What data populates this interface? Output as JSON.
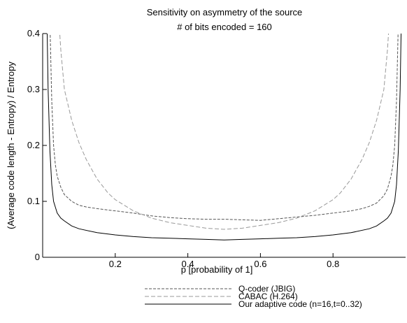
{
  "chart_data": {
    "type": "line",
    "title": "Sensitivity on asymmetry of the source",
    "subtitle": "# of bits encoded = 160",
    "xlabel": "p [probability of 1]",
    "ylabel": "(Average code length - Entropy) / Entropy",
    "xlim": [
      0,
      1
    ],
    "ylim": [
      0,
      0.4
    ],
    "grid": false,
    "legend_position": "bottom",
    "x_ticks": [
      0.2,
      0.4,
      0.6,
      0.8
    ],
    "x_tick_labels": [
      "0.2",
      "0.4",
      "0.6",
      "0.8"
    ],
    "y_ticks": [
      0.1,
      0.2,
      0.3,
      0.4
    ],
    "y_tick_labels": [
      "0.1",
      "0.2",
      "0.3",
      "0.4"
    ],
    "origin_label": "0",
    "series": [
      {
        "name": "Q-coder (JBIG)",
        "color": "#555555",
        "dash": "4,2",
        "x": [
          0.02,
          0.025,
          0.03,
          0.035,
          0.04,
          0.05,
          0.06,
          0.08,
          0.1,
          0.12,
          0.15,
          0.2,
          0.25,
          0.3,
          0.35,
          0.4,
          0.45,
          0.5,
          0.55,
          0.6,
          0.65,
          0.7,
          0.75,
          0.8,
          0.85,
          0.88,
          0.9,
          0.92,
          0.94,
          0.95,
          0.96,
          0.965,
          0.97,
          0.975,
          0.98
        ],
        "y": [
          0.42,
          0.28,
          0.2,
          0.165,
          0.145,
          0.125,
          0.112,
          0.1,
          0.093,
          0.09,
          0.087,
          0.083,
          0.079,
          0.074,
          0.071,
          0.069,
          0.068,
          0.068,
          0.067,
          0.066,
          0.069,
          0.072,
          0.075,
          0.079,
          0.083,
          0.087,
          0.091,
          0.097,
          0.11,
          0.122,
          0.145,
          0.165,
          0.2,
          0.28,
          0.42
        ]
      },
      {
        "name": "CABAC (H.264)",
        "color": "#999999",
        "dash": "6,3",
        "x": [
          0.045,
          0.05,
          0.06,
          0.08,
          0.1,
          0.12,
          0.15,
          0.18,
          0.2,
          0.25,
          0.3,
          0.35,
          0.4,
          0.45,
          0.5,
          0.55,
          0.6,
          0.65,
          0.7,
          0.75,
          0.8,
          0.82,
          0.85,
          0.88,
          0.9,
          0.92,
          0.94,
          0.95,
          0.955
        ],
        "y": [
          0.42,
          0.37,
          0.3,
          0.245,
          0.205,
          0.175,
          0.14,
          0.115,
          0.103,
          0.083,
          0.07,
          0.062,
          0.057,
          0.052,
          0.05,
          0.052,
          0.057,
          0.062,
          0.07,
          0.083,
          0.103,
          0.115,
          0.14,
          0.175,
          0.205,
          0.245,
          0.3,
          0.37,
          0.42
        ]
      },
      {
        "name": "Our adaptive code (n=16,t=0..32)",
        "color": "#000000",
        "dash": "",
        "x": [
          0.012,
          0.015,
          0.02,
          0.025,
          0.03,
          0.04,
          0.05,
          0.06,
          0.08,
          0.1,
          0.15,
          0.2,
          0.25,
          0.3,
          0.35,
          0.4,
          0.45,
          0.5,
          0.55,
          0.6,
          0.65,
          0.7,
          0.75,
          0.8,
          0.85,
          0.9,
          0.92,
          0.94,
          0.95,
          0.96,
          0.97,
          0.975,
          0.98,
          0.985,
          0.988
        ],
        "y": [
          0.42,
          0.3,
          0.19,
          0.13,
          0.1,
          0.079,
          0.07,
          0.065,
          0.056,
          0.051,
          0.044,
          0.04,
          0.037,
          0.035,
          0.034,
          0.033,
          0.032,
          0.031,
          0.032,
          0.033,
          0.034,
          0.035,
          0.037,
          0.04,
          0.044,
          0.051,
          0.056,
          0.065,
          0.07,
          0.079,
          0.1,
          0.13,
          0.19,
          0.3,
          0.42
        ]
      }
    ]
  }
}
